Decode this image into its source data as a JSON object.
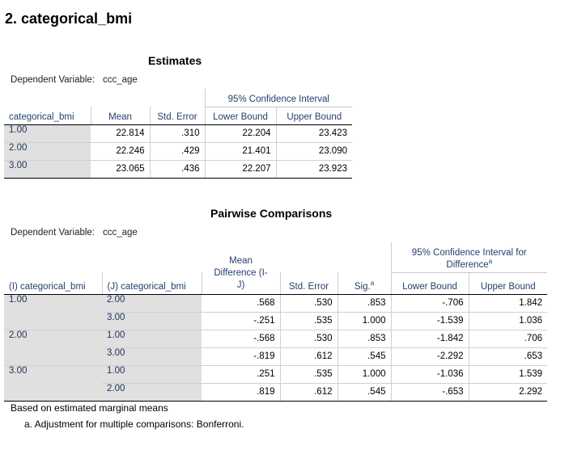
{
  "section_title": "2. categorical_bmi",
  "estimates": {
    "title": "Estimates",
    "dep_var_label": "Dependent Variable:",
    "dep_var_value": "ccc_age",
    "ci_header": "95% Confidence Interval",
    "columns": [
      "categorical_bmi",
      "Mean",
      "Std. Error",
      "Lower Bound",
      "Upper Bound"
    ],
    "rows": [
      [
        "1.00",
        "22.814",
        ".310",
        "22.204",
        "23.423"
      ],
      [
        "2.00",
        "22.246",
        ".429",
        "21.401",
        "23.090"
      ],
      [
        "3.00",
        "23.065",
        ".436",
        "22.207",
        "23.923"
      ]
    ]
  },
  "pairwise": {
    "title": "Pairwise Comparisons",
    "dep_var_label": "Dependent Variable:",
    "dep_var_value": "ccc_age",
    "ci_header_line1": "95% Confidence Interval for",
    "ci_header_line2": "Difference",
    "ci_header_sup": "a",
    "col_i": "(I) categorical_bmi",
    "col_j": "(J) categorical_bmi",
    "col_mean_diff_line1": "Mean",
    "col_mean_diff_line2": "Difference (I-",
    "col_mean_diff_line3": "J)",
    "col_std_error": "Std. Error",
    "col_sig": "Sig.",
    "col_sig_sup": "a",
    "col_lower": "Lower Bound",
    "col_upper": "Upper Bound",
    "groups": [
      {
        "i": "1.00",
        "rows": [
          [
            "2.00",
            ".568",
            ".530",
            ".853",
            "-.706",
            "1.842"
          ],
          [
            "3.00",
            "-.251",
            ".535",
            "1.000",
            "-1.539",
            "1.036"
          ]
        ]
      },
      {
        "i": "2.00",
        "rows": [
          [
            "1.00",
            "-.568",
            ".530",
            ".853",
            "-1.842",
            ".706"
          ],
          [
            "3.00",
            "-.819",
            ".612",
            ".545",
            "-2.292",
            ".653"
          ]
        ]
      },
      {
        "i": "3.00",
        "rows": [
          [
            "1.00",
            ".251",
            ".535",
            "1.000",
            "-1.036",
            "1.539"
          ],
          [
            "2.00",
            ".819",
            ".612",
            ".545",
            "-.653",
            "2.292"
          ]
        ]
      }
    ],
    "note1": "Based on estimated marginal means",
    "note2": "a. Adjustment for multiple comparisons: Bonferroni."
  }
}
